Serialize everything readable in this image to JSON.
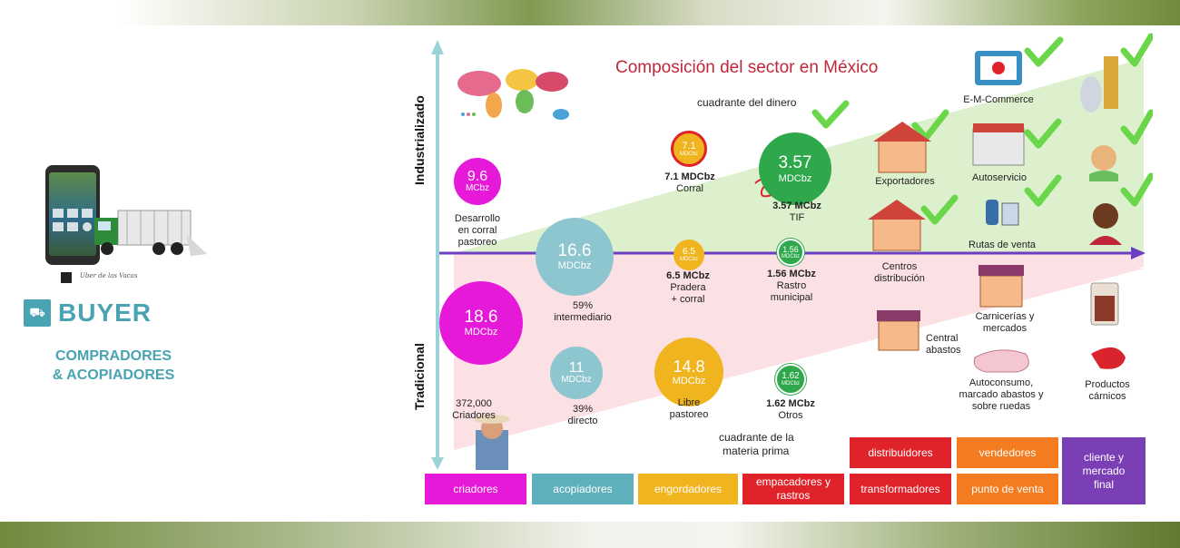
{
  "left_panel": {
    "phone_caption": "Uber de las Vacas",
    "buyer": "BUYER",
    "subtitle_line1": "COMPRADORES",
    "subtitle_line2": "& ACOPIADORES"
  },
  "diagram": {
    "title": "Composición del sector en México",
    "y_axis_top": "Industrializado",
    "y_axis_bottom": "Tradicional",
    "quadrant_top": "cuadrante del dinero",
    "quadrant_bottom_1": "cuadrante de la",
    "quadrant_bottom_2": "materia prima",
    "colors": {
      "magenta": "#e619d9",
      "teal": "#8ec6cf",
      "gold": "#f0b41e",
      "red": "#e0222a",
      "green": "#2ea84b",
      "orange": "#f47c20",
      "purple": "#7b3fb5",
      "arrow": "#6b3ec4",
      "axis": "#9cd3d9",
      "top_fill": "#ddf0cd",
      "bottom_fill": "#fbe0e4",
      "check": "#6ad64a"
    },
    "bubbles": {
      "b96": {
        "value": "9.6",
        "unit": "MCbz",
        "label_1": "Desarrollo",
        "label_2": "en corral",
        "label_3": "pastoreo"
      },
      "b186": {
        "value": "18.6",
        "unit": "MDCbz",
        "label_1": "372,000",
        "label_2": "Criadores"
      },
      "b166": {
        "value": "16.6",
        "unit": "MDCbz",
        "label_1": "59%",
        "label_2": "intermediario"
      },
      "b11": {
        "value": "11",
        "unit": "MDCbz",
        "label_1": "39%",
        "label_2": "directo"
      },
      "b71": {
        "value": "7.1",
        "unit": "MDCbz",
        "bold": "7.1 MDCbz",
        "label_1": "Corral"
      },
      "b65": {
        "value": "6.5",
        "unit": "MDCbz",
        "bold": "6.5 MCbz",
        "label_1": "Pradera",
        "label_2": "+ corral"
      },
      "b148": {
        "value": "14.8",
        "unit": "MDCbz",
        "label_1": "Libre",
        "label_2": "pastoreo"
      },
      "b357": {
        "value": "3.57",
        "unit": "MDCbz",
        "bold": "3.57 MCbz",
        "label_1": "TIF"
      },
      "b156": {
        "value": "1.56",
        "unit": "MDCbz",
        "bold": "1.56 MCbz",
        "label_1": "Rastro",
        "label_2": "municipal"
      },
      "b162": {
        "value": "1.62",
        "unit": "MDCbz",
        "bold": "1.62 MCbz",
        "label_1": "Otros"
      }
    },
    "nodes": {
      "exportadores": "Exportadores",
      "centros_1": "Centros",
      "centros_2": "distribución",
      "central_1": "Central",
      "central_2": "abastos",
      "ecommerce": "E-M-Commerce",
      "autoservicio": "Autoservicio",
      "rutas": "Rutas de venta",
      "carnicerias_1": "Carnicerías y",
      "carnicerias_2": "mercados",
      "autoconsumo_1": "Autoconsumo,",
      "autoconsumo_2": "marcado abastos y",
      "autoconsumo_3": "sobre ruedas",
      "productos_1": "Productos",
      "productos_2": "cárnicos"
    },
    "chain": {
      "criadores": "criadores",
      "acopiadores": "acopiadores",
      "engordadores": "engordadores",
      "empacadores_1": "empacadores y",
      "empacadores_2": "rastros",
      "distribuidores": "distribuidores",
      "transformadores": "transformadores",
      "vendedores": "vendedores",
      "punto_venta": "punto de venta",
      "cliente_1": "cliente y",
      "cliente_2": "mercado",
      "cliente_3": "final"
    }
  }
}
